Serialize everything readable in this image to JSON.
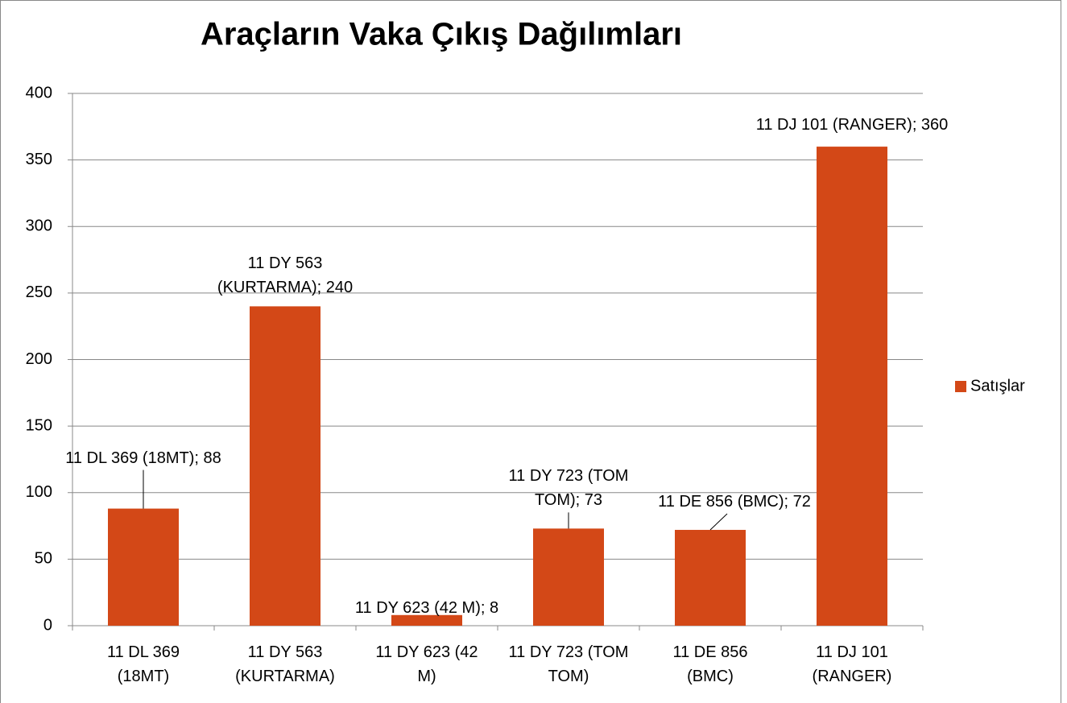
{
  "chart_data": {
    "type": "bar",
    "title": "Araçların Vaka Çıkış Dağılımları",
    "categories": [
      "11 DL 369 (18MT)",
      "11 DY 563 (KURTARMA)",
      "11 DY 623 (42 M)",
      "11 DY 723 (TOM TOM)",
      "11 DE 856 (BMC)",
      "11 DJ 101 (RANGER)"
    ],
    "series": [
      {
        "name": "Satışlar",
        "color": "#d34817",
        "values": [
          88,
          240,
          8,
          73,
          72,
          360
        ],
        "value_labels": [
          "11 DL 369 (18MT); 88",
          "11 DY 563 (KURTARMA); 240",
          "11 DY 623 (42 M); 8",
          "11 DY 723 (TOM TOM); 73",
          "11 DE 856 (BMC); 72",
          "11 DJ 101 (RANGER); 360"
        ]
      }
    ],
    "ylim": [
      0,
      400
    ],
    "yticks": [
      0,
      50,
      100,
      150,
      200,
      250,
      300,
      350,
      400
    ],
    "grid": true,
    "legend": "right"
  }
}
